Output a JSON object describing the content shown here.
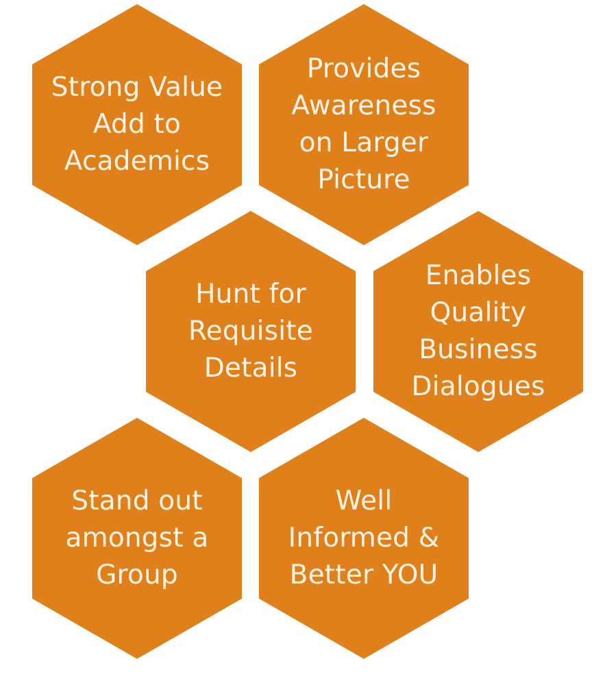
{
  "colors": {
    "hex_fill": "#E0801A",
    "hex_text": "#FDF3E6",
    "background": "#FFFFFF"
  },
  "hexagons": [
    {
      "lines": [
        "Strong Value",
        "Add to",
        "Academics"
      ]
    },
    {
      "lines": [
        "Provides",
        "Awareness",
        "on Larger",
        "Picture"
      ]
    },
    {
      "lines": [
        "Hunt for",
        "Requisite",
        "Details"
      ]
    },
    {
      "lines": [
        "Enables",
        "Quality",
        "Business",
        "Dialogues"
      ]
    },
    {
      "lines": [
        "Stand out",
        "amongst a",
        "Group"
      ]
    },
    {
      "lines": [
        "Well",
        "Informed &",
        "Better YOU"
      ]
    }
  ]
}
